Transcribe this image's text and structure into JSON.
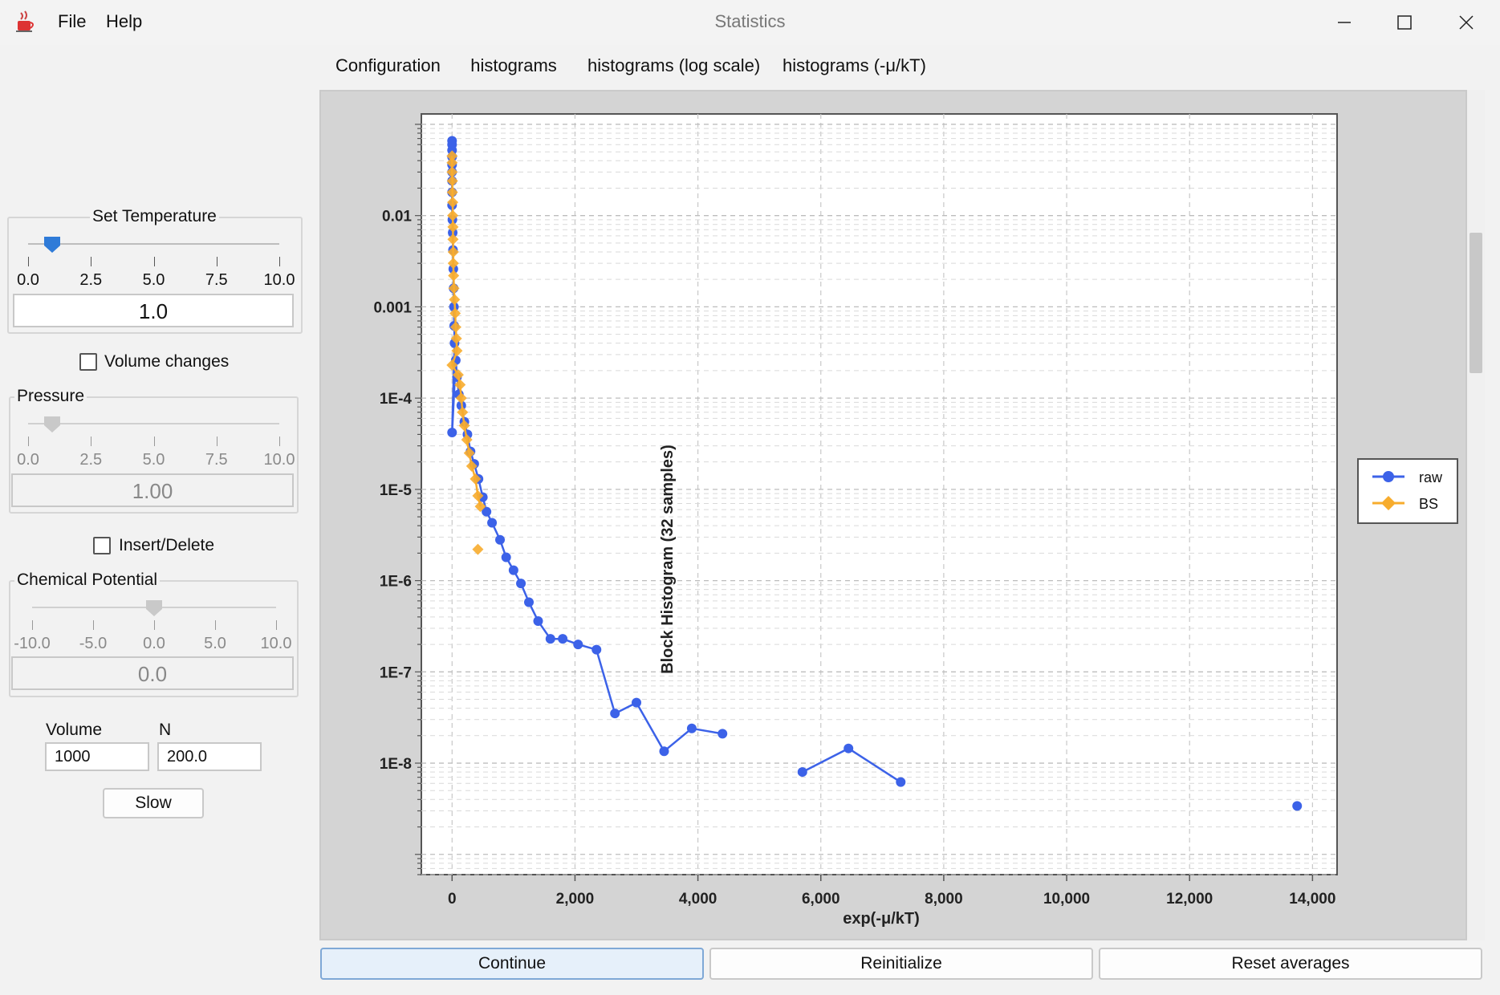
{
  "window": {
    "title": "Statistics",
    "menu": [
      "File",
      "Help"
    ]
  },
  "tabs": [
    {
      "label": "Configuration",
      "active": false
    },
    {
      "label": "histograms",
      "active": true
    },
    {
      "label": "histograms (log scale)",
      "active": false
    },
    {
      "label": "histograms (-μ/kT)",
      "active": false
    }
  ],
  "controls": {
    "temperature": {
      "label": "Set Temperature",
      "ticks": [
        "0.0",
        "2.5",
        "5.0",
        "7.5",
        "10.0"
      ],
      "value": "1.0",
      "slider_fraction": 0.1
    },
    "volume_changes": {
      "label": "Volume changes",
      "checked": false
    },
    "pressure": {
      "label": "Pressure",
      "ticks": [
        "0.0",
        "2.5",
        "5.0",
        "7.5",
        "10.0"
      ],
      "value": "1.00",
      "slider_fraction": 0.1
    },
    "insert_delete": {
      "label": "Insert/Delete",
      "checked": false
    },
    "chemical_potential": {
      "label": "Chemical Potential",
      "ticks": [
        "-10.0",
        "-5.0",
        "0.0",
        "5.0",
        "10.0"
      ],
      "value": "0.0",
      "slider_fraction": 0.5
    },
    "volume": {
      "label": "Volume",
      "value": "1000"
    },
    "n": {
      "label": "N",
      "value": "200.0"
    },
    "speed_button": "Slow"
  },
  "bottom_buttons": {
    "continue": "Continue",
    "reinitialize": "Reinitialize",
    "reset": "Reset averages"
  },
  "colors": {
    "raw": "#3c62e8",
    "bs": "#f7ac2d",
    "accent": "#3c7fc7"
  },
  "chart_data": {
    "type": "line",
    "xlabel": "exp(-μ/kT)",
    "ylabel": "Block Histogram (32 samples)",
    "yscale": "log",
    "xlim": [
      -500,
      14400
    ],
    "ylim": [
      6e-10,
      0.13
    ],
    "xticks": [
      0,
      2000,
      4000,
      6000,
      8000,
      10000,
      12000,
      14000
    ],
    "xtick_labels": [
      "0",
      "2,000",
      "4,000",
      "6,000",
      "8,000",
      "10,000",
      "12,000",
      "14,000"
    ],
    "yticks": [
      1e-08,
      1e-07,
      1e-06,
      1e-05,
      0.0001,
      0.001,
      0.01
    ],
    "ytick_labels": [
      "1E-8",
      "1E-7",
      "1E-6",
      "1E-5",
      "1E-4",
      "0.001",
      "0.01"
    ],
    "grid": true,
    "legend_position": "right",
    "series": [
      {
        "name": "raw",
        "marker": "circle",
        "segments": [
          [
            [
              0,
              0.066
            ],
            [
              0,
              0.06
            ],
            [
              0,
              0.052
            ],
            [
              0,
              0.044
            ],
            [
              0,
              0.036
            ],
            [
              0,
              0.03
            ],
            [
              0,
              0.024
            ],
            [
              0,
              0.018
            ],
            [
              0,
              0.013
            ],
            [
              5,
              0.009
            ],
            [
              10,
              0.0065
            ],
            [
              15,
              0.0042
            ],
            [
              20,
              0.0026
            ],
            [
              25,
              0.0016
            ],
            [
              30,
              0.001
            ],
            [
              35,
              0.00062
            ],
            [
              40,
              0.0004
            ],
            [
              0,
              4.2e-05
            ],
            [
              60,
              0.00026
            ],
            [
              80,
              0.00017
            ],
            [
              110,
              0.00011
            ],
            [
              150,
              8.3e-05
            ],
            [
              200,
              5.5e-05
            ],
            [
              250,
              4e-05
            ],
            [
              300,
              2.6e-05
            ],
            [
              360,
              1.9e-05
            ],
            [
              430,
              1.3e-05
            ],
            [
              500,
              8.2e-06
            ],
            [
              560,
              5.7e-06
            ],
            [
              650,
              4.3e-06
            ],
            [
              780,
              2.8e-06
            ],
            [
              880,
              1.8e-06
            ],
            [
              1000,
              1.3e-06
            ],
            [
              1120,
              9.3e-07
            ],
            [
              1250,
              5.8e-07
            ],
            [
              1400,
              3.6e-07
            ],
            [
              1600,
              2.3e-07
            ],
            [
              1800,
              2.3e-07
            ],
            [
              2050,
              2e-07
            ],
            [
              2350,
              1.75e-07
            ],
            [
              2650,
              3.5e-08
            ],
            [
              3000,
              4.6e-08
            ],
            [
              3450,
              1.35e-08
            ],
            [
              3900,
              2.4e-08
            ],
            [
              4400,
              2.1e-08
            ]
          ],
          [
            [
              5700,
              8e-09
            ],
            [
              6450,
              1.45e-08
            ],
            [
              7300,
              6.2e-09
            ]
          ],
          [
            [
              13750,
              3.4e-09
            ]
          ]
        ]
      },
      {
        "name": "BS",
        "marker": "diamond",
        "segments": [
          [
            [
              0,
              0.045
            ],
            [
              0,
              0.038
            ],
            [
              0,
              0.03
            ],
            [
              5,
              0.024
            ],
            [
              5,
              0.018
            ],
            [
              10,
              0.014
            ],
            [
              10,
              0.01
            ],
            [
              15,
              0.0075
            ],
            [
              15,
              0.0055
            ],
            [
              20,
              0.004
            ],
            [
              20,
              0.003
            ],
            [
              25,
              0.0022
            ],
            [
              30,
              0.0016
            ],
            [
              40,
              0.0012
            ],
            [
              50,
              0.00085
            ],
            [
              60,
              0.0006
            ],
            [
              70,
              0.00045
            ],
            [
              80,
              0.00033
            ],
            [
              0,
              0.00023
            ],
            [
              100,
              0.00018
            ],
            [
              130,
              0.00014
            ],
            [
              150,
              0.0001
            ],
            [
              170,
              7e-05
            ],
            [
              200,
              5e-05
            ],
            [
              240,
              3.5e-05
            ],
            [
              280,
              2.5e-05
            ],
            [
              320,
              1.8e-05
            ],
            [
              380,
              1.3e-05
            ],
            [
              420,
              8.5e-06
            ],
            [
              460,
              6.5e-06
            ]
          ],
          [
            [
              420,
              2.2e-06
            ]
          ]
        ]
      }
    ]
  }
}
